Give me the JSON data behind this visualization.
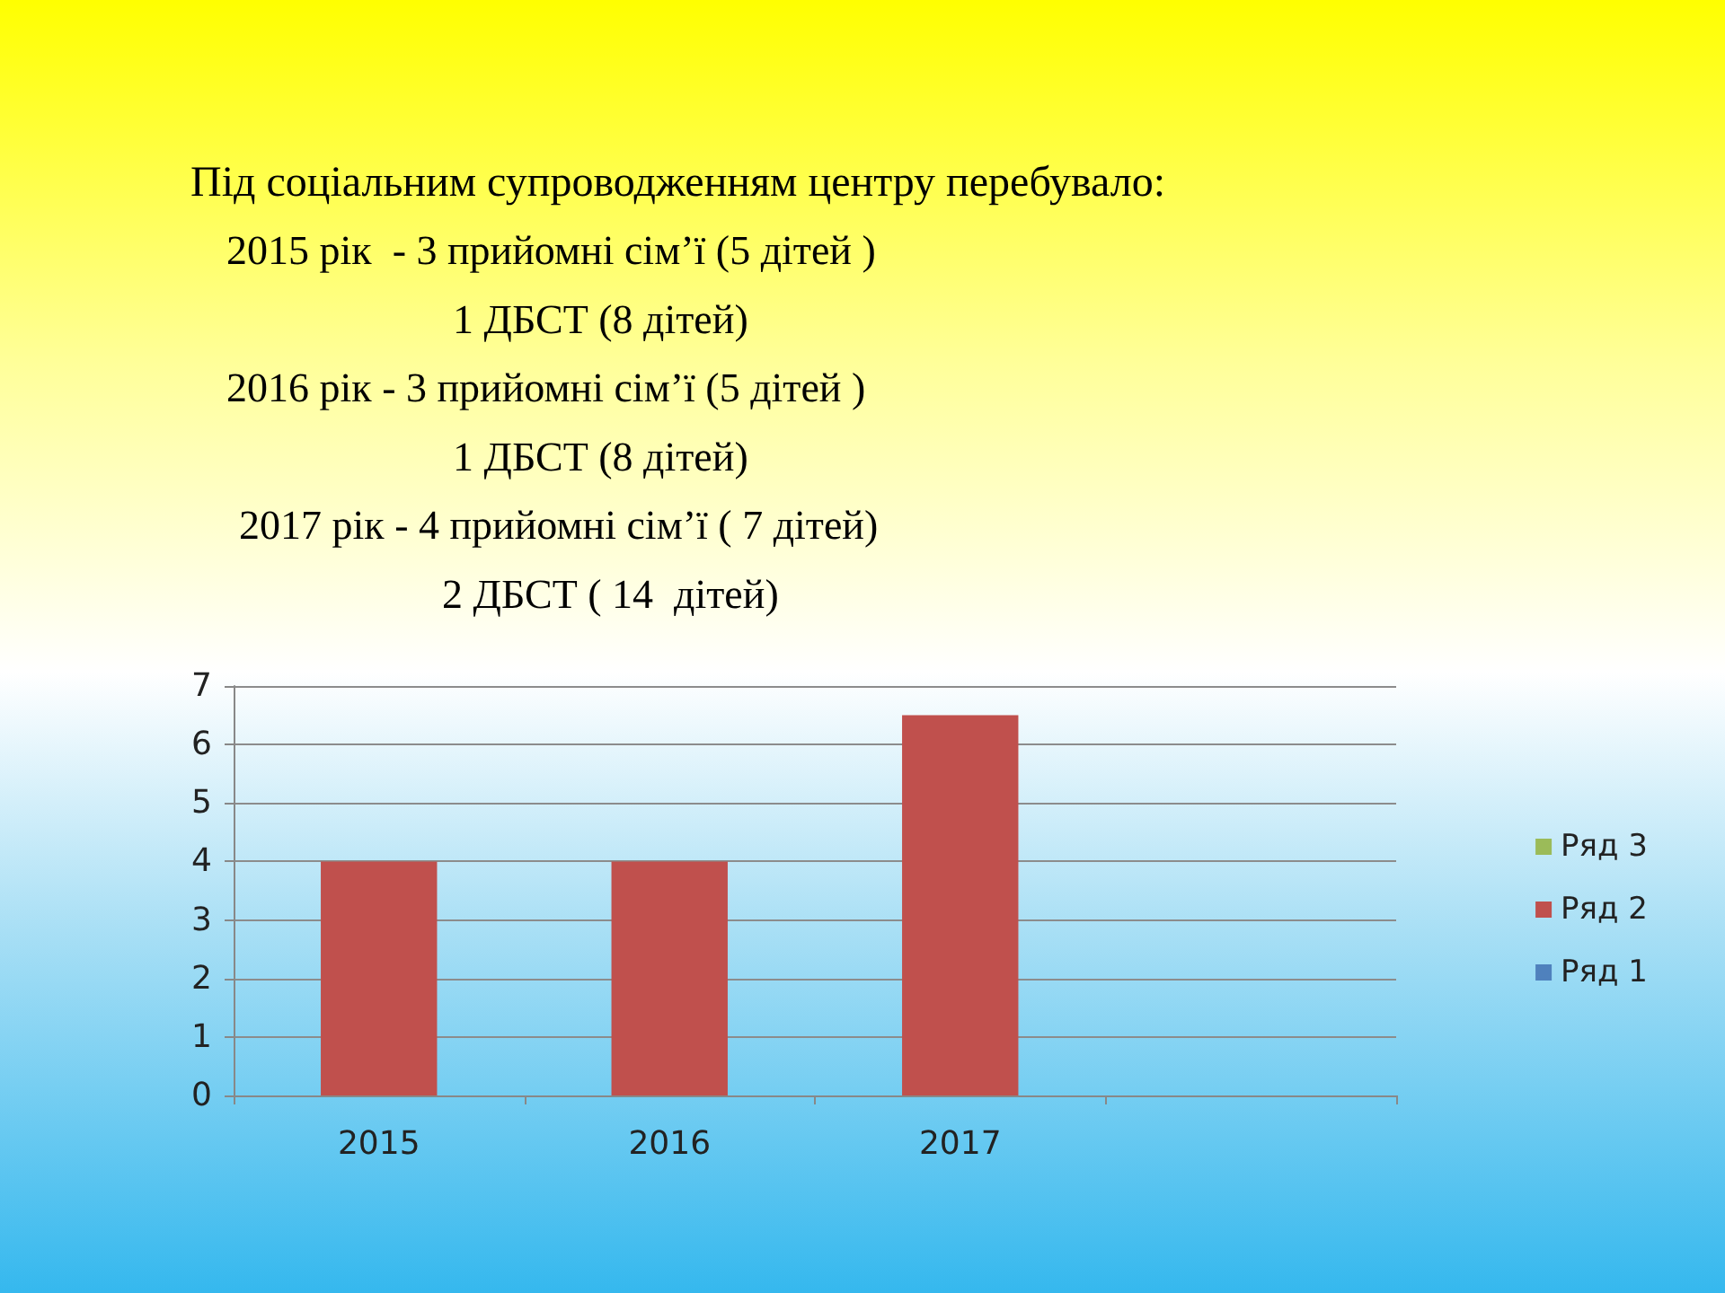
{
  "chart_data": {
    "type": "bar",
    "title": "Під соціальним супроводженням центру перебувало:",
    "annotations": [
      "2015 рік  - 3 прийомні сім’ї (5 дітей )",
      "1 ДБСТ (8 дітей)",
      "2016 рік - 3 прийомні сім’ї (5 дітей )",
      "1 ДБСТ (8 дітей)",
      "2017 рік - 4 прийомні сім’ї ( 7 дітей)",
      "2 ДБСТ ( 14  дітей)"
    ],
    "categories": [
      "2015",
      "2016",
      "2017",
      null
    ],
    "series": [
      {
        "name": "Ряд 1",
        "color": "#4f81bd",
        "values": [
          null,
          null,
          null,
          null
        ]
      },
      {
        "name": "Ряд 2",
        "color": "#c0504d",
        "values": [
          4,
          4,
          6.5,
          null
        ]
      },
      {
        "name": "Ряд 3",
        "color": "#9bbb59",
        "values": [
          null,
          null,
          null,
          null
        ]
      }
    ],
    "ylim": [
      0,
      7
    ],
    "yticks": [
      0,
      1,
      2,
      3,
      4,
      5,
      6,
      7
    ],
    "grid": "y",
    "legend": "right"
  }
}
